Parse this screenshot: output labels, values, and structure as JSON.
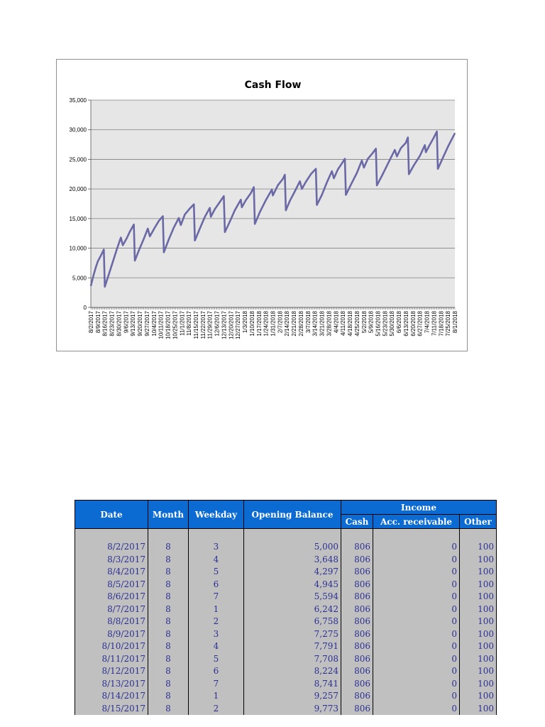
{
  "chart_data": {
    "type": "line",
    "title": "Cash Flow",
    "xlabel": "",
    "ylabel": "",
    "ylim": [
      0,
      35000
    ],
    "yticks": [
      "0",
      "5,000",
      "10,000",
      "15,000",
      "20,000",
      "25,000",
      "30,000",
      "35,000"
    ],
    "grid": true,
    "legend": "none",
    "series_color": "#6a69a5",
    "plot_background": "#e6e6e6",
    "x_tick_labels": [
      "8/2/2017",
      "8/9/2017",
      "8/16/2017",
      "8/23/2017",
      "8/30/2017",
      "9/6/2017",
      "9/13/2017",
      "9/20/2017",
      "9/27/2017",
      "10/4/2017",
      "10/11/2017",
      "10/18/2017",
      "10/25/2017",
      "11/1/2017",
      "11/8/2017",
      "11/15/2017",
      "11/22/2017",
      "11/29/2017",
      "12/6/2017",
      "12/13/2017",
      "12/20/2017",
      "12/27/2017",
      "1/3/2018",
      "1/10/2018",
      "1/17/2018",
      "1/24/2018",
      "1/31/2018",
      "2/7/2018",
      "2/14/2018",
      "2/21/2018",
      "2/28/2018",
      "3/7/2018",
      "3/14/2018",
      "3/21/2018",
      "3/28/2018",
      "4/4/2018",
      "4/11/2018",
      "4/18/2018",
      "4/25/2018",
      "5/2/2018",
      "5/9/2018",
      "5/16/2018",
      "5/23/2018",
      "5/30/2018",
      "6/6/2018",
      "6/13/2018",
      "6/20/2018",
      "6/27/2018",
      "7/4/2018",
      "7/11/2018",
      "7/18/2018",
      "7/25/2018",
      "8/1/2018"
    ],
    "series": [
      {
        "points": [
          [
            "8/2/2017",
            3648
          ],
          [
            "8/5/2017",
            5594
          ],
          [
            "8/7/2017",
            6758
          ],
          [
            "8/9/2017",
            7791
          ],
          [
            "8/12/2017",
            8741
          ],
          [
            "8/15/2017",
            9773
          ],
          [
            "8/16/2017",
            3500
          ],
          [
            "8/20/2017",
            5600
          ],
          [
            "8/24/2017",
            7700
          ],
          [
            "8/28/2017",
            9800
          ],
          [
            "9/1/2017",
            11800
          ],
          [
            "9/3/2017",
            10500
          ],
          [
            "9/7/2017",
            11700
          ],
          [
            "9/10/2017",
            12800
          ],
          [
            "9/14/2017",
            14000
          ],
          [
            "9/15/2017",
            7900
          ],
          [
            "9/19/2017",
            9600
          ],
          [
            "9/24/2017",
            11600
          ],
          [
            "9/28/2017",
            13300
          ],
          [
            "9/30/2017",
            12000
          ],
          [
            "10/5/2017",
            13500
          ],
          [
            "10/9/2017",
            14600
          ],
          [
            "10/13/2017",
            15400
          ],
          [
            "10/14/2017",
            9300
          ],
          [
            "10/19/2017",
            11500
          ],
          [
            "10/24/2017",
            13500
          ],
          [
            "10/29/2017",
            15100
          ],
          [
            "10/31/2017",
            13900
          ],
          [
            "11/4/2017",
            15700
          ],
          [
            "11/9/2017",
            16700
          ],
          [
            "11/13/2017",
            17400
          ],
          [
            "11/14/2017",
            11300
          ],
          [
            "11/19/2017",
            13300
          ],
          [
            "11/24/2017",
            15300
          ],
          [
            "11/29/2017",
            16800
          ],
          [
            "11/30/2017",
            15300
          ],
          [
            "12/4/2017",
            16600
          ],
          [
            "12/9/2017",
            17800
          ],
          [
            "12/13/2017",
            18800
          ],
          [
            "12/14/2017",
            12700
          ],
          [
            "12/19/2017",
            14500
          ],
          [
            "12/24/2017",
            16400
          ],
          [
            "12/30/2017",
            18200
          ],
          [
            "12/31/2017",
            16900
          ],
          [
            "1/4/2018",
            18100
          ],
          [
            "1/9/2018",
            19300
          ],
          [
            "1/12/2018",
            20300
          ],
          [
            "1/13/2018",
            14100
          ],
          [
            "1/18/2018",
            16100
          ],
          [
            "1/24/2018",
            18100
          ],
          [
            "1/30/2018",
            19900
          ],
          [
            "1/31/2018",
            18900
          ],
          [
            "2/5/2018",
            20600
          ],
          [
            "2/10/2018",
            21700
          ],
          [
            "2/12/2018",
            22400
          ],
          [
            "2/13/2018",
            16400
          ],
          [
            "2/17/2018",
            18000
          ],
          [
            "2/22/2018",
            19600
          ],
          [
            "2/27/2018",
            21300
          ],
          [
            "3/1/2018",
            20000
          ],
          [
            "3/5/2018",
            21200
          ],
          [
            "3/10/2018",
            22500
          ],
          [
            "3/15/2018",
            23400
          ],
          [
            "3/16/2018",
            17300
          ],
          [
            "3/21/2018",
            19000
          ],
          [
            "3/26/2018",
            21100
          ],
          [
            "3/31/2018",
            23000
          ],
          [
            "4/2/2018",
            21800
          ],
          [
            "4/6/2018",
            23300
          ],
          [
            "4/10/2018",
            24300
          ],
          [
            "4/13/2018",
            25100
          ],
          [
            "4/14/2018",
            19000
          ],
          [
            "4/19/2018",
            20700
          ],
          [
            "4/25/2018",
            22700
          ],
          [
            "4/30/2018",
            24800
          ],
          [
            "5/2/2018",
            23600
          ],
          [
            "5/6/2018",
            25100
          ],
          [
            "5/11/2018",
            26100
          ],
          [
            "5/14/2018",
            26800
          ],
          [
            "5/15/2018",
            20600
          ],
          [
            "5/20/2018",
            22200
          ],
          [
            "5/27/2018",
            24600
          ],
          [
            "6/2/2018",
            26600
          ],
          [
            "6/4/2018",
            25500
          ],
          [
            "6/8/2018",
            26900
          ],
          [
            "6/13/2018",
            27800
          ],
          [
            "6/15/2018",
            28700
          ],
          [
            "6/16/2018",
            22500
          ],
          [
            "6/21/2018",
            24000
          ],
          [
            "6/27/2018",
            25600
          ],
          [
            "7/2/2018",
            27400
          ],
          [
            "7/3/2018",
            26200
          ],
          [
            "7/7/2018",
            27500
          ],
          [
            "7/11/2018",
            28700
          ],
          [
            "7/14/2018",
            29700
          ],
          [
            "7/15/2018",
            23400
          ],
          [
            "7/19/2018",
            24900
          ],
          [
            "7/25/2018",
            27100
          ],
          [
            "8/1/2018",
            29400
          ]
        ]
      }
    ]
  },
  "table": {
    "headers": {
      "date": "Date",
      "month": "Month",
      "weekday": "Weekday",
      "opening_balance": "Opening Balance",
      "income": "Income",
      "cash": "Cash",
      "acc_receivable": "Acc. receivable",
      "other": "Other"
    },
    "rows": [
      {
        "date": "8/2/2017",
        "month": "8",
        "weekday": "3",
        "opening_balance": "5,000",
        "cash": "806",
        "acc_receivable": "0",
        "other": "100"
      },
      {
        "date": "8/3/2017",
        "month": "8",
        "weekday": "4",
        "opening_balance": "3,648",
        "cash": "806",
        "acc_receivable": "0",
        "other": "100"
      },
      {
        "date": "8/4/2017",
        "month": "8",
        "weekday": "5",
        "opening_balance": "4,297",
        "cash": "806",
        "acc_receivable": "0",
        "other": "100"
      },
      {
        "date": "8/5/2017",
        "month": "8",
        "weekday": "6",
        "opening_balance": "4,945",
        "cash": "806",
        "acc_receivable": "0",
        "other": "100"
      },
      {
        "date": "8/6/2017",
        "month": "8",
        "weekday": "7",
        "opening_balance": "5,594",
        "cash": "806",
        "acc_receivable": "0",
        "other": "100"
      },
      {
        "date": "8/7/2017",
        "month": "8",
        "weekday": "1",
        "opening_balance": "6,242",
        "cash": "806",
        "acc_receivable": "0",
        "other": "100"
      },
      {
        "date": "8/8/2017",
        "month": "8",
        "weekday": "2",
        "opening_balance": "6,758",
        "cash": "806",
        "acc_receivable": "0",
        "other": "100"
      },
      {
        "date": "8/9/2017",
        "month": "8",
        "weekday": "3",
        "opening_balance": "7,275",
        "cash": "806",
        "acc_receivable": "0",
        "other": "100"
      },
      {
        "date": "8/10/2017",
        "month": "8",
        "weekday": "4",
        "opening_balance": "7,791",
        "cash": "806",
        "acc_receivable": "0",
        "other": "100"
      },
      {
        "date": "8/11/2017",
        "month": "8",
        "weekday": "5",
        "opening_balance": "7,708",
        "cash": "806",
        "acc_receivable": "0",
        "other": "100"
      },
      {
        "date": "8/12/2017",
        "month": "8",
        "weekday": "6",
        "opening_balance": "8,224",
        "cash": "806",
        "acc_receivable": "0",
        "other": "100"
      },
      {
        "date": "8/13/2017",
        "month": "8",
        "weekday": "7",
        "opening_balance": "8,741",
        "cash": "806",
        "acc_receivable": "0",
        "other": "100"
      },
      {
        "date": "8/14/2017",
        "month": "8",
        "weekday": "1",
        "opening_balance": "9,257",
        "cash": "806",
        "acc_receivable": "0",
        "other": "100"
      },
      {
        "date": "8/15/2017",
        "month": "8",
        "weekday": "2",
        "opening_balance": "9,773",
        "cash": "806",
        "acc_receivable": "0",
        "other": "100"
      }
    ]
  }
}
